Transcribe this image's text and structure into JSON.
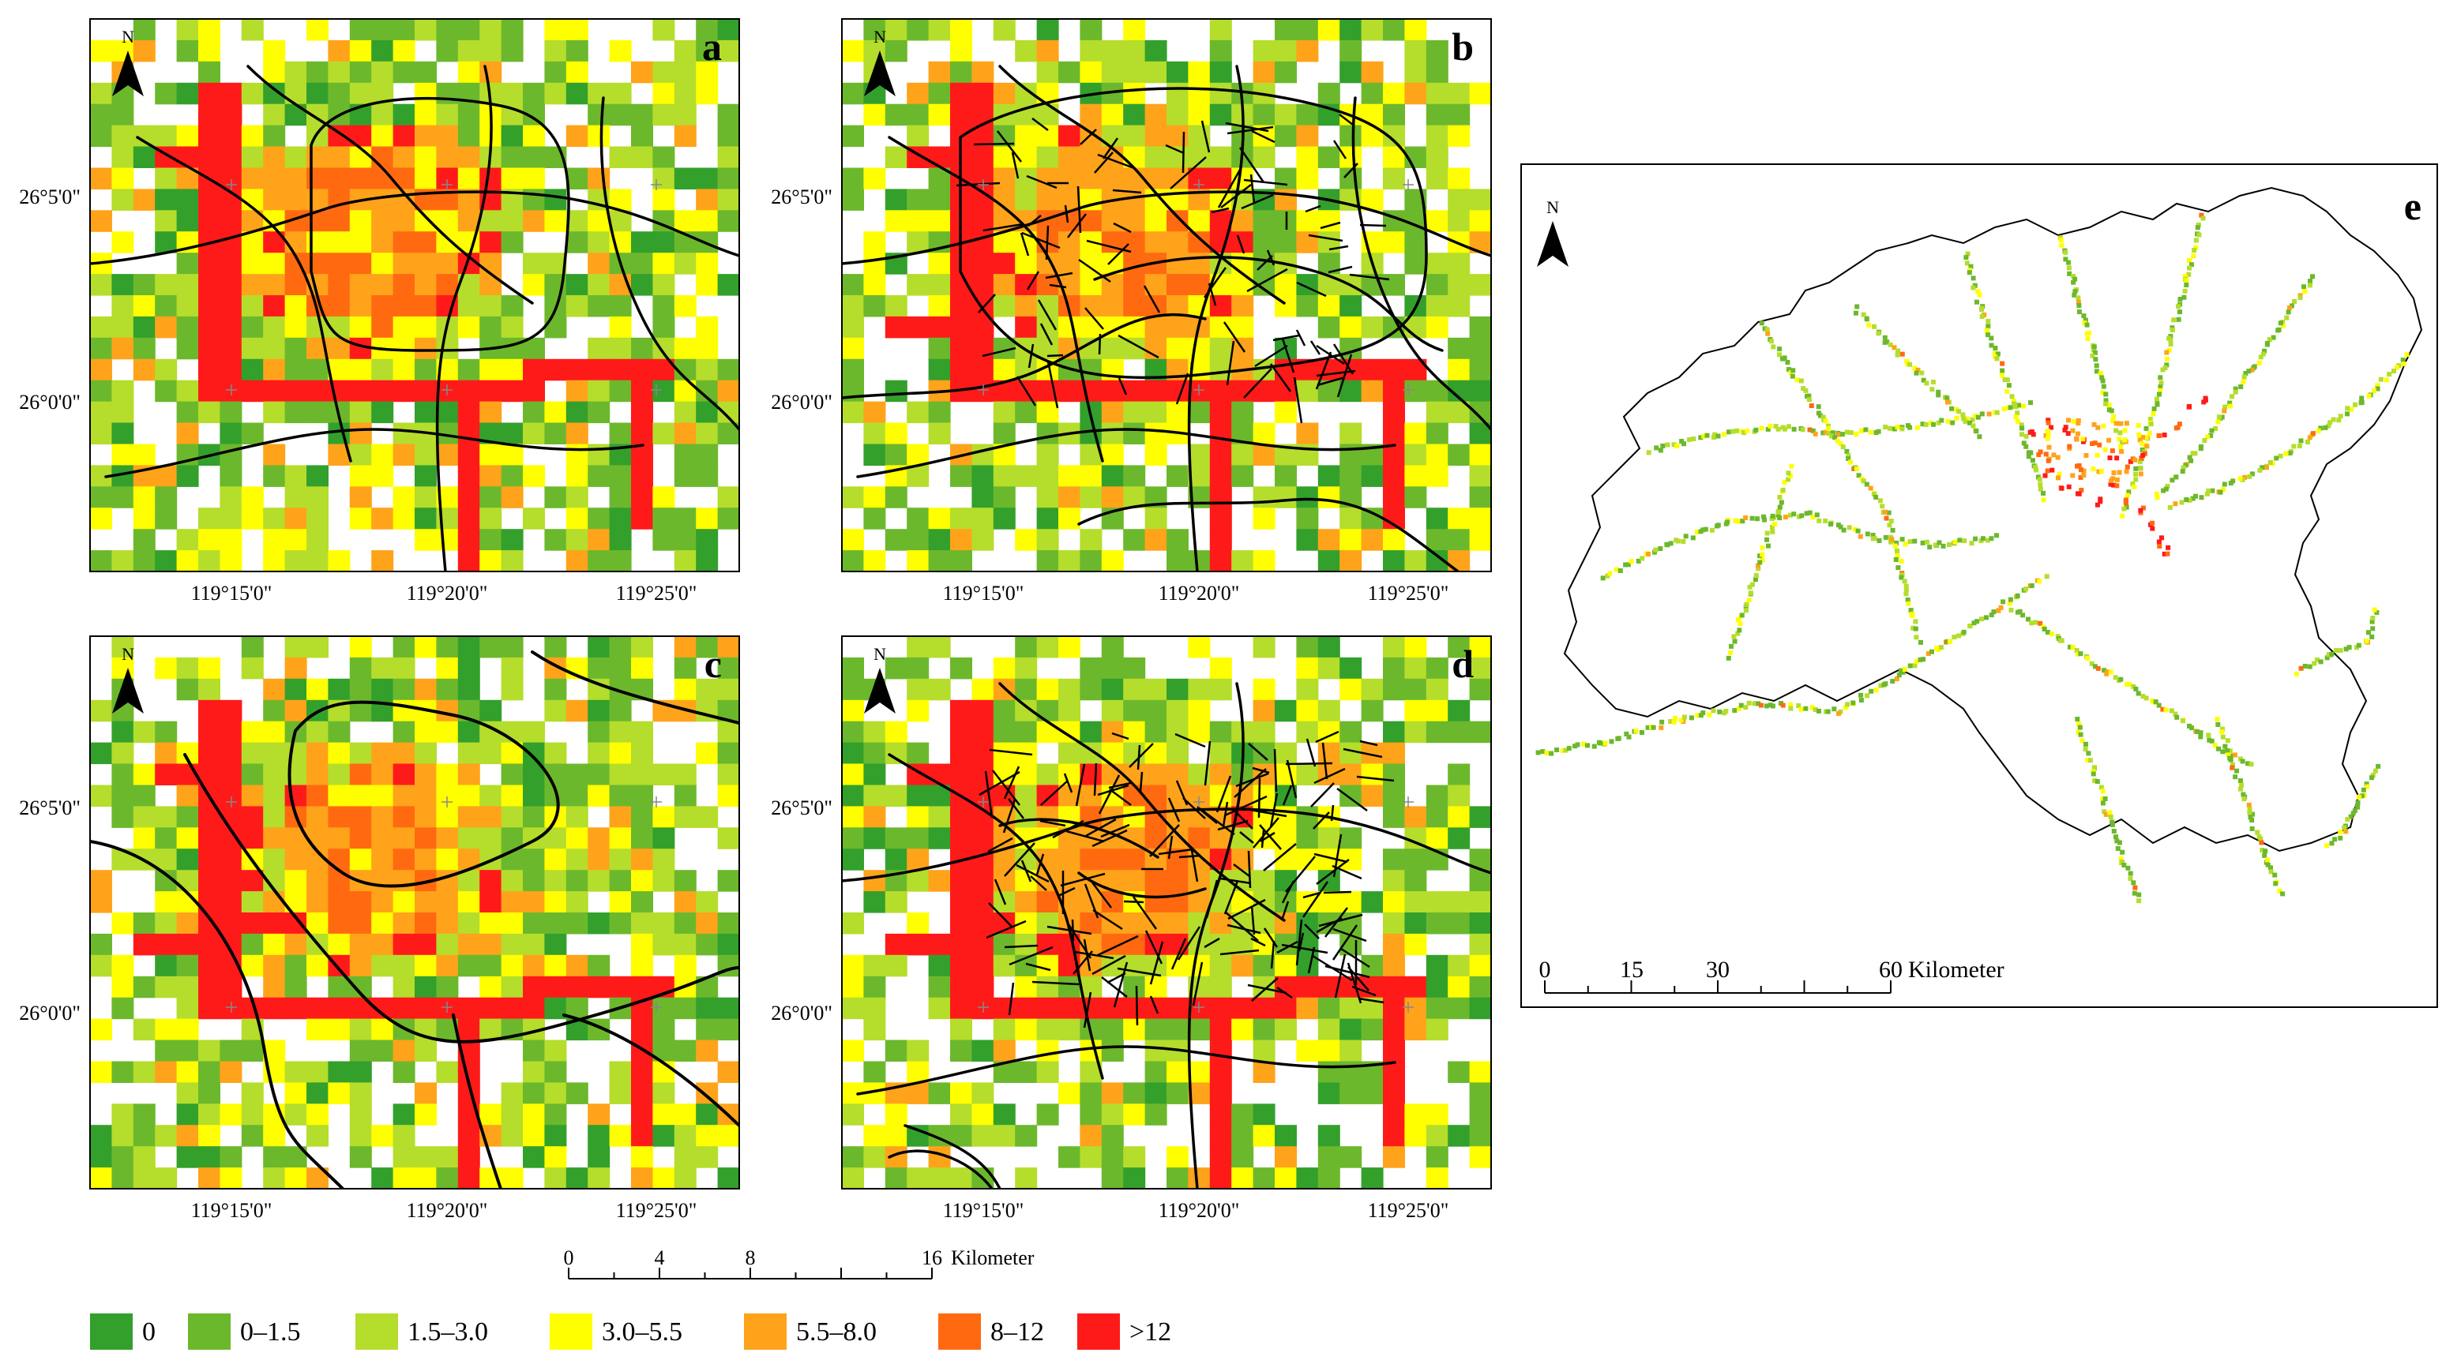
{
  "panels": [
    {
      "label": "a"
    },
    {
      "label": "b"
    },
    {
      "label": "c"
    },
    {
      "label": "d"
    }
  ],
  "north_label": "N",
  "lat_labels": [
    "26°5'0\"",
    "26°0'0\""
  ],
  "lon_labels": [
    "119°15'0\"",
    "119°20'0\"",
    "119°25'0\""
  ],
  "scale_bar_small": {
    "ticks": [
      "0",
      "4",
      "8",
      "16"
    ],
    "unit": "Kilometer"
  },
  "panel_e": {
    "label": "e",
    "scale_ticks": [
      "0",
      "15",
      "30",
      "60"
    ],
    "unit": "Kilometer"
  },
  "legend": {
    "items": [
      {
        "label": "0",
        "color": "#33a02c"
      },
      {
        "label": "0–1.5",
        "color": "#6cb82c"
      },
      {
        "label": "1.5–3.0",
        "color": "#b5dd2c"
      },
      {
        "label": "3.0–5.5",
        "color": "#ffff00"
      },
      {
        "label": "5.5–8.0",
        "color": "#ffa31a"
      },
      {
        "label": "8–12",
        "color": "#ff6a10"
      },
      {
        "label": ">12",
        "color": "#ff1a1a"
      }
    ]
  }
}
